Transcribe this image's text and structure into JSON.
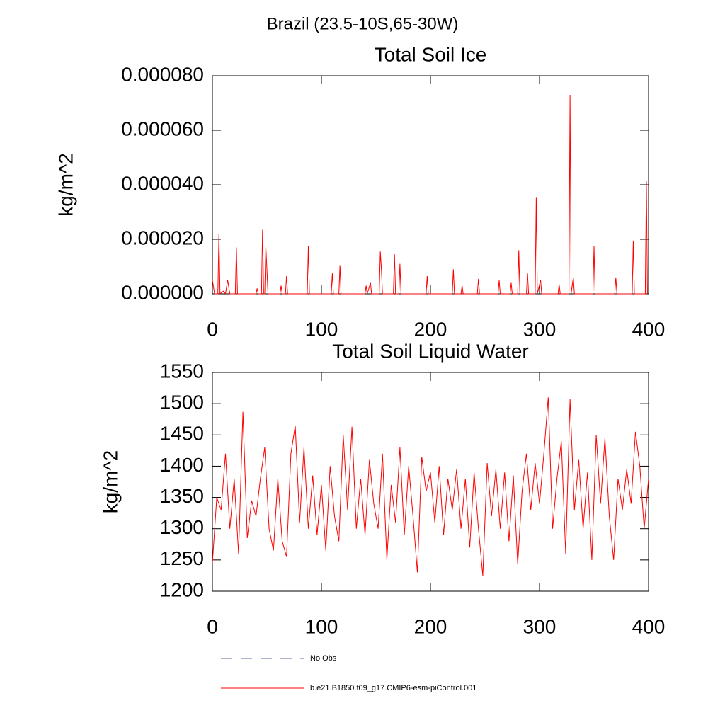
{
  "title": "Brazil (23.5-10S,65-30W)",
  "legend": [
    {
      "name": "No Obs",
      "color": "#5a6a9a",
      "dashed": true
    },
    {
      "name": "b.e21.B1850.f09_g17.CMIP6-esm-piControl.001",
      "color": "#ff0000",
      "dashed": false
    }
  ],
  "chart_data": [
    {
      "type": "line",
      "title": "Total Soil Ice",
      "ylabel": "kg/m^2",
      "color": "#ff0000",
      "x": [
        0,
        2,
        5,
        6,
        7,
        10,
        12,
        14,
        16,
        21,
        22,
        23,
        40,
        41,
        42,
        45,
        46,
        47,
        48,
        49,
        50,
        51,
        62,
        63,
        64,
        67,
        68,
        69,
        87,
        88,
        89,
        109,
        110,
        111,
        116,
        117,
        118,
        140,
        141,
        142,
        145,
        146,
        153,
        154,
        155,
        156,
        166,
        167,
        168,
        171,
        172,
        173,
        196,
        197,
        198,
        220,
        221,
        222,
        228,
        229,
        230,
        243,
        244,
        245,
        262,
        263,
        264,
        273,
        274,
        275,
        280,
        281,
        282,
        288,
        289,
        290,
        296,
        297,
        298,
        301,
        302,
        317,
        318,
        319,
        327,
        328,
        329,
        331,
        332,
        349,
        350,
        351,
        369,
        370,
        371,
        385,
        386,
        387,
        397,
        398,
        399
      ],
      "values": [
        5e-06,
        0,
        0,
        2.2e-05,
        0,
        1e-06,
        0,
        5e-06,
        0,
        0,
        1.7e-05,
        0,
        0,
        2e-06,
        0,
        0,
        2.35e-05,
        0,
        0,
        1.75e-05,
        9e-06,
        0,
        0,
        3e-06,
        0,
        0,
        6.5e-06,
        0,
        0,
        1.75e-05,
        0,
        0,
        7.5e-06,
        0,
        0,
        1.05e-05,
        0,
        0,
        3e-06,
        0,
        4e-06,
        0,
        0,
        1.55e-05,
        9e-06,
        0,
        0,
        1.45e-05,
        0,
        0,
        1.1e-05,
        0,
        0,
        6.5e-06,
        0,
        0,
        9e-06,
        0,
        0,
        3e-06,
        0,
        0,
        5.5e-06,
        0,
        0,
        5e-06,
        0,
        0,
        4e-06,
        0,
        0,
        1.6e-05,
        0,
        0,
        7.5e-06,
        0,
        0,
        3.55e-05,
        0,
        5e-06,
        0,
        0,
        3.5e-06,
        0,
        0,
        7.3e-05,
        0,
        6e-06,
        0,
        0,
        1.75e-05,
        0,
        0,
        6e-06,
        0,
        0,
        1.95e-05,
        0,
        0,
        4.15e-05,
        0
      ],
      "xlim": [
        0,
        400
      ],
      "xticks": [
        0,
        100,
        200,
        300,
        400
      ],
      "ylim": [
        0,
        8e-05
      ],
      "yticks": [
        {
          "value": 0,
          "label": "0.000000"
        },
        {
          "value": 2e-05,
          "label": "0.000020"
        },
        {
          "value": 4e-05,
          "label": "0.000040"
        },
        {
          "value": 6e-05,
          "label": "0.000060"
        },
        {
          "value": 8e-05,
          "label": "0.000080"
        }
      ]
    },
    {
      "type": "line",
      "title": "Total Soil Liquid Water",
      "ylabel": "kg/m^2",
      "color": "#ff0000",
      "x": [
        0,
        4,
        8,
        12,
        16,
        20,
        24,
        28,
        32,
        36,
        40,
        44,
        48,
        52,
        56,
        60,
        64,
        68,
        72,
        76,
        80,
        84,
        88,
        92,
        96,
        100,
        104,
        108,
        112,
        116,
        120,
        124,
        128,
        132,
        136,
        140,
        144,
        148,
        152,
        156,
        160,
        164,
        168,
        172,
        176,
        180,
        184,
        188,
        192,
        196,
        200,
        204,
        208,
        212,
        216,
        220,
        224,
        228,
        232,
        236,
        240,
        244,
        248,
        252,
        256,
        260,
        264,
        268,
        272,
        276,
        280,
        284,
        288,
        292,
        296,
        300,
        304,
        308,
        312,
        316,
        320,
        324,
        328,
        332,
        336,
        340,
        344,
        348,
        352,
        356,
        360,
        364,
        368,
        372,
        376,
        380,
        384,
        388,
        392,
        396,
        400
      ],
      "values": [
        1245,
        1350,
        1330,
        1420,
        1300,
        1380,
        1260,
        1487,
        1285,
        1345,
        1320,
        1380,
        1430,
        1300,
        1265,
        1380,
        1280,
        1255,
        1420,
        1465,
        1310,
        1430,
        1300,
        1385,
        1290,
        1370,
        1265,
        1400,
        1320,
        1280,
        1450,
        1330,
        1463,
        1300,
        1380,
        1290,
        1410,
        1340,
        1300,
        1420,
        1250,
        1370,
        1310,
        1430,
        1290,
        1400,
        1320,
        1230,
        1415,
        1360,
        1390,
        1310,
        1400,
        1290,
        1380,
        1330,
        1395,
        1300,
        1380,
        1270,
        1390,
        1300,
        1225,
        1405,
        1320,
        1395,
        1300,
        1390,
        1280,
        1385,
        1243,
        1360,
        1420,
        1330,
        1405,
        1340,
        1420,
        1510,
        1300,
        1380,
        1440,
        1260,
        1507,
        1330,
        1410,
        1300,
        1390,
        1250,
        1450,
        1340,
        1445,
        1320,
        1250,
        1380,
        1330,
        1395,
        1340,
        1455,
        1400,
        1300,
        1380
      ],
      "xlim": [
        0,
        400
      ],
      "xticks": [
        0,
        100,
        200,
        300,
        400
      ],
      "ylim": [
        1200,
        1550
      ],
      "yticks": [
        1200,
        1250,
        1300,
        1350,
        1400,
        1450,
        1500,
        1550
      ]
    }
  ]
}
